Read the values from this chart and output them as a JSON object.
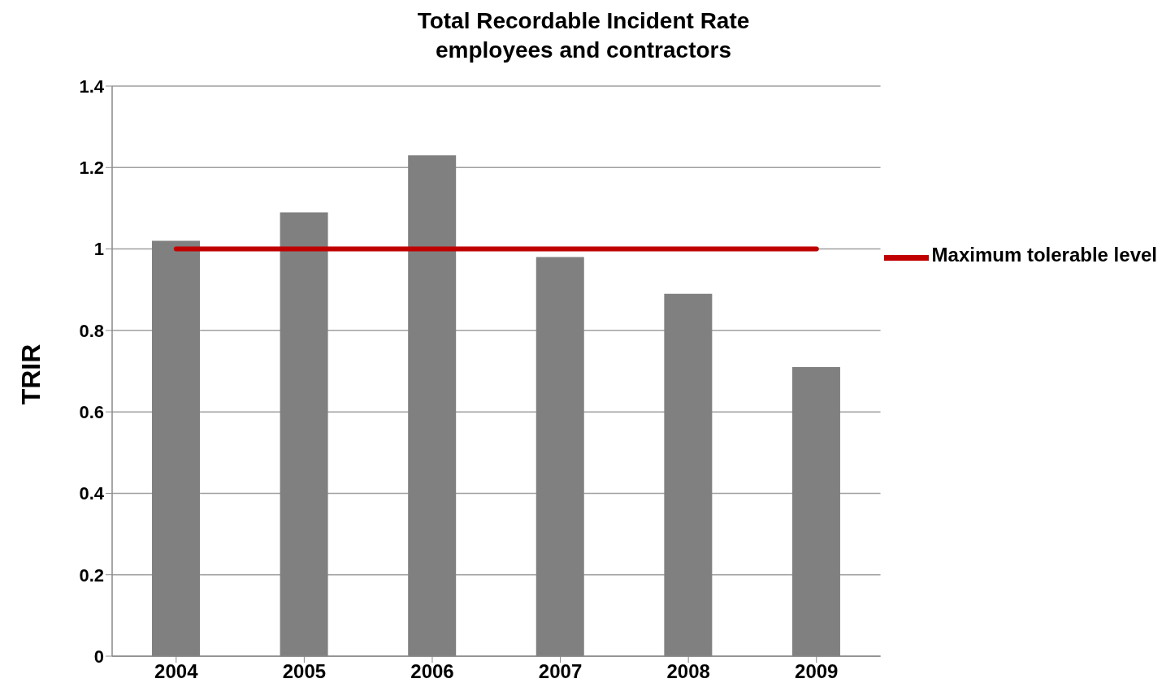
{
  "chart_data": {
    "type": "bar",
    "title": "Total Recordable Incident Rate",
    "subtitle": "employees and contractors",
    "ylabel": "TRIR",
    "categories": [
      "2004",
      "2005",
      "2006",
      "2007",
      "2008",
      "2009"
    ],
    "series": [
      {
        "color": "#808080",
        "values": [
          1.02,
          1.09,
          1.23,
          0.98,
          0.89,
          0.71
        ]
      },
      {
        "type": "line",
        "name": "Maximum tolerable level",
        "color": "#c00000",
        "values": [
          1,
          1,
          1,
          1,
          1,
          1
        ],
        "marker": "none"
      }
    ],
    "ylim": [
      0,
      1.4
    ],
    "yticks": [
      0,
      0.2,
      0.4,
      0.6,
      0.8,
      1,
      1.2,
      1.4
    ],
    "grid": "y",
    "legend": "right"
  }
}
